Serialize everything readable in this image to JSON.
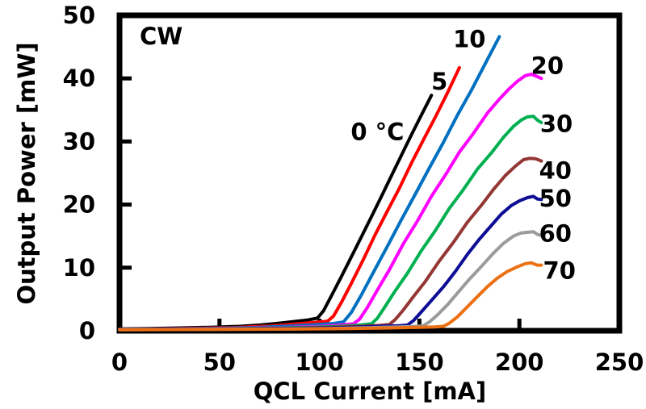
{
  "figure": {
    "background_color": "#ffffff",
    "frame_color": "#000000",
    "annotation_cw": "CW"
  },
  "chart_data": {
    "type": "line",
    "title": "",
    "xlabel": "QCL Current [mA]",
    "ylabel": "Output Power [mW]",
    "xlim": [
      0,
      250
    ],
    "ylim": [
      0,
      50
    ],
    "xticks": [
      0,
      50,
      100,
      150,
      200,
      250
    ],
    "yticks": [
      0,
      10,
      20,
      30,
      40,
      50
    ],
    "grid": false,
    "legend_position": "inline-labels",
    "annotation": {
      "text": "CW",
      "x": 20,
      "y": 46.5
    },
    "series": [
      {
        "name": "0c",
        "label": "0 °C",
        "temperature_c": 0,
        "color": "#000000",
        "threshold_mA": 99,
        "max_power_mW": 37.2,
        "label_pos": {
          "x": 129,
          "y": 31.5
        },
        "points": [
          [
            0,
            0.3
          ],
          [
            15,
            0.35
          ],
          [
            30,
            0.45
          ],
          [
            45,
            0.55
          ],
          [
            60,
            0.7
          ],
          [
            70,
            0.9
          ],
          [
            80,
            1.2
          ],
          [
            88,
            1.5
          ],
          [
            94,
            1.7
          ],
          [
            99,
            2.0
          ],
          [
            102,
            3.2
          ],
          [
            106,
            5.5
          ],
          [
            111,
            8.6
          ],
          [
            116,
            11.8
          ],
          [
            121,
            15.0
          ],
          [
            126,
            18.2
          ],
          [
            131,
            21.4
          ],
          [
            136,
            24.6
          ],
          [
            141,
            27.8
          ],
          [
            146,
            31.0
          ],
          [
            151,
            34.1
          ],
          [
            156,
            37.2
          ]
        ]
      },
      {
        "name": "5c",
        "label": "5",
        "temperature_c": 5,
        "color": "#ff0000",
        "threshold_mA": 104,
        "max_power_mW": 41.6,
        "label_pos": {
          "x": 160,
          "y": 39.5
        },
        "points": [
          [
            0,
            0.25
          ],
          [
            20,
            0.3
          ],
          [
            40,
            0.4
          ],
          [
            60,
            0.55
          ],
          [
            75,
            0.75
          ],
          [
            85,
            1.0
          ],
          [
            95,
            1.25
          ],
          [
            104,
            1.5
          ],
          [
            107,
            2.3
          ],
          [
            111,
            4.5
          ],
          [
            116,
            7.6
          ],
          [
            122,
            11.4
          ],
          [
            128,
            15.2
          ],
          [
            134,
            19.0
          ],
          [
            140,
            22.7
          ],
          [
            146,
            26.5
          ],
          [
            152,
            30.2
          ],
          [
            158,
            34.0
          ],
          [
            164,
            37.7
          ],
          [
            170,
            41.6
          ]
        ]
      },
      {
        "name": "10c",
        "label": "10",
        "temperature_c": 10,
        "color": "#0070c0",
        "threshold_mA": 111,
        "max_power_mW": 46.7,
        "label_pos": {
          "x": 175,
          "y": 46.2
        },
        "points": [
          [
            0,
            0.25
          ],
          [
            25,
            0.3
          ],
          [
            50,
            0.4
          ],
          [
            70,
            0.55
          ],
          [
            85,
            0.75
          ],
          [
            97,
            0.95
          ],
          [
            107,
            1.15
          ],
          [
            112,
            1.4
          ],
          [
            116,
            3.0
          ],
          [
            121,
            5.8
          ],
          [
            127,
            9.3
          ],
          [
            134,
            13.4
          ],
          [
            141,
            17.6
          ],
          [
            148,
            21.7
          ],
          [
            155,
            25.8
          ],
          [
            162,
            29.9
          ],
          [
            169,
            34.1
          ],
          [
            176,
            38.2
          ],
          [
            183,
            42.3
          ],
          [
            190,
            46.7
          ]
        ]
      },
      {
        "name": "20c",
        "label": "20",
        "temperature_c": 20,
        "color": "#ff00ff",
        "threshold_mA": 117,
        "max_power_mW": 40.6,
        "label_pos": {
          "x": 214,
          "y": 42.0
        },
        "points": [
          [
            0,
            0.2
          ],
          [
            30,
            0.3
          ],
          [
            60,
            0.4
          ],
          [
            85,
            0.55
          ],
          [
            100,
            0.7
          ],
          [
            110,
            0.9
          ],
          [
            117,
            1.1
          ],
          [
            120,
            1.8
          ],
          [
            124,
            3.6
          ],
          [
            129,
            6.4
          ],
          [
            135,
            9.8
          ],
          [
            142,
            13.7
          ],
          [
            149,
            17.5
          ],
          [
            156,
            21.2
          ],
          [
            163,
            24.8
          ],
          [
            170,
            28.2
          ],
          [
            177,
            31.4
          ],
          [
            184,
            34.4
          ],
          [
            190,
            36.8
          ],
          [
            195,
            38.5
          ],
          [
            199,
            39.6
          ],
          [
            203,
            40.4
          ],
          [
            206,
            40.6
          ],
          [
            209,
            40.4
          ],
          [
            211,
            39.9
          ]
        ]
      },
      {
        "name": "30c",
        "label": "30",
        "temperature_c": 30,
        "color": "#00b050",
        "threshold_mA": 126,
        "max_power_mW": 34.0,
        "label_pos": {
          "x": 218.5,
          "y": 32.8
        },
        "points": [
          [
            0,
            0.2
          ],
          [
            40,
            0.3
          ],
          [
            70,
            0.4
          ],
          [
            95,
            0.55
          ],
          [
            110,
            0.7
          ],
          [
            120,
            0.9
          ],
          [
            126,
            1.1
          ],
          [
            129,
            2.0
          ],
          [
            133,
            3.8
          ],
          [
            138,
            6.3
          ],
          [
            144,
            9.2
          ],
          [
            151,
            12.6
          ],
          [
            158,
            16.0
          ],
          [
            165,
            19.3
          ],
          [
            172,
            22.5
          ],
          [
            179,
            25.5
          ],
          [
            186,
            28.3
          ],
          [
            192,
            30.6
          ],
          [
            197,
            32.3
          ],
          [
            201,
            33.4
          ],
          [
            204,
            34.0
          ],
          [
            207,
            33.9
          ],
          [
            209,
            33.5
          ],
          [
            211,
            32.9
          ]
        ]
      },
      {
        "name": "40c",
        "label": "40",
        "temperature_c": 40,
        "color": "#943634",
        "threshold_mA": 135,
        "max_power_mW": 27.4,
        "label_pos": {
          "x": 218,
          "y": 25.4
        },
        "points": [
          [
            0,
            0.2
          ],
          [
            50,
            0.3
          ],
          [
            85,
            0.4
          ],
          [
            105,
            0.55
          ],
          [
            120,
            0.7
          ],
          [
            130,
            0.85
          ],
          [
            135,
            1.0
          ],
          [
            138,
            1.8
          ],
          [
            142,
            3.2
          ],
          [
            147,
            5.3
          ],
          [
            153,
            7.9
          ],
          [
            160,
            11.0
          ],
          [
            167,
            14.1
          ],
          [
            174,
            17.1
          ],
          [
            181,
            20.0
          ],
          [
            187,
            22.4
          ],
          [
            193,
            24.5
          ],
          [
            198,
            26.0
          ],
          [
            202,
            27.0
          ],
          [
            205,
            27.4
          ],
          [
            208,
            27.3
          ],
          [
            211,
            26.8
          ]
        ]
      },
      {
        "name": "50c",
        "label": "50",
        "temperature_c": 50,
        "color": "#0d0d96",
        "threshold_mA": 144,
        "max_power_mW": 21.2,
        "label_pos": {
          "x": 218,
          "y": 21.0
        },
        "points": [
          [
            0,
            0.2
          ],
          [
            60,
            0.3
          ],
          [
            95,
            0.4
          ],
          [
            115,
            0.55
          ],
          [
            130,
            0.7
          ],
          [
            140,
            0.8
          ],
          [
            144,
            0.9
          ],
          [
            147,
            1.6
          ],
          [
            151,
            2.9
          ],
          [
            156,
            4.7
          ],
          [
            162,
            7.0
          ],
          [
            168,
            9.5
          ],
          [
            174,
            12.0
          ],
          [
            180,
            14.5
          ],
          [
            186,
            16.8
          ],
          [
            191,
            18.6
          ],
          [
            196,
            19.9
          ],
          [
            200,
            20.7
          ],
          [
            204,
            21.2
          ],
          [
            207,
            21.2
          ],
          [
            209,
            21.0
          ],
          [
            211,
            20.7
          ]
        ]
      },
      {
        "name": "60c",
        "label": "60",
        "temperature_c": 60,
        "color": "#9b9b9b",
        "threshold_mA": 152,
        "max_power_mW": 15.7,
        "label_pos": {
          "x": 218,
          "y": 15.4
        },
        "points": [
          [
            0,
            0.15
          ],
          [
            70,
            0.25
          ],
          [
            105,
            0.35
          ],
          [
            125,
            0.5
          ],
          [
            140,
            0.6
          ],
          [
            149,
            0.7
          ],
          [
            152,
            0.8
          ],
          [
            155,
            1.4
          ],
          [
            159,
            2.5
          ],
          [
            164,
            4.1
          ],
          [
            169,
            5.9
          ],
          [
            175,
            8.1
          ],
          [
            181,
            10.3
          ],
          [
            187,
            12.3
          ],
          [
            192,
            13.8
          ],
          [
            197,
            14.9
          ],
          [
            201,
            15.5
          ],
          [
            204,
            15.7
          ],
          [
            207,
            15.6
          ],
          [
            209,
            15.4
          ],
          [
            211,
            15.0
          ]
        ]
      },
      {
        "name": "70c",
        "label": "70",
        "temperature_c": 70,
        "color": "#ec7014",
        "threshold_mA": 162,
        "max_power_mW": 10.7,
        "label_pos": {
          "x": 220,
          "y": 9.5
        },
        "points": [
          [
            0,
            0.15
          ],
          [
            80,
            0.25
          ],
          [
            115,
            0.35
          ],
          [
            135,
            0.45
          ],
          [
            150,
            0.55
          ],
          [
            158,
            0.62
          ],
          [
            162,
            0.7
          ],
          [
            165,
            1.2
          ],
          [
            169,
            2.2
          ],
          [
            174,
            3.7
          ],
          [
            179,
            5.3
          ],
          [
            184,
            6.9
          ],
          [
            189,
            8.3
          ],
          [
            194,
            9.4
          ],
          [
            199,
            10.2
          ],
          [
            203,
            10.6
          ],
          [
            206,
            10.7
          ],
          [
            209,
            10.5
          ],
          [
            211,
            10.3
          ]
        ]
      }
    ]
  }
}
